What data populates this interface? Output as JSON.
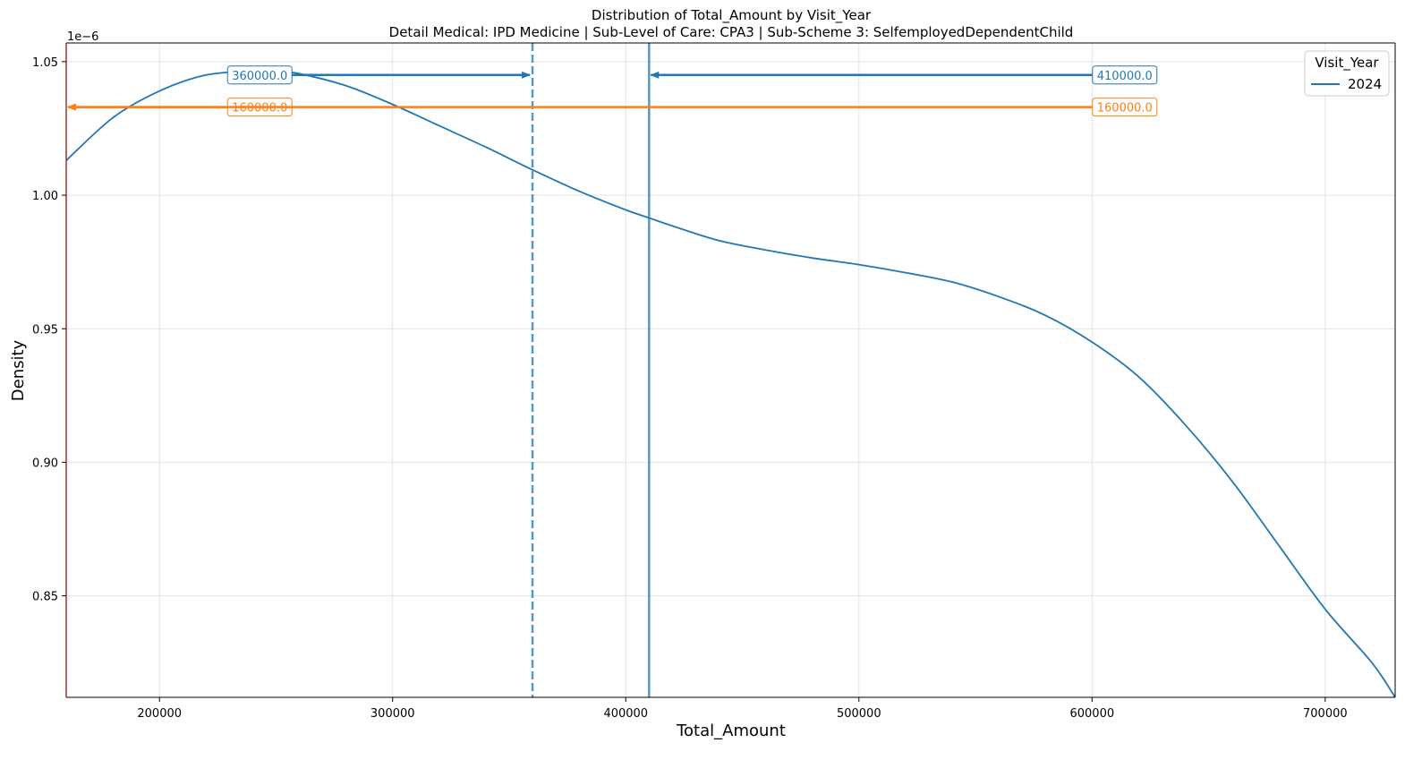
{
  "chart_data": {
    "type": "line",
    "title": "Distribution of Total_Amount by Visit_Year",
    "subtitle": "Detail Medical: IPD Medicine | Sub-Level of Care: CPA3 | Sub-Scheme 3: SelfemployedDependentChild",
    "xlabel": "Total_Amount",
    "ylabel": "Density",
    "y_offset_label": "1e−6",
    "xlim": [
      160000,
      730000
    ],
    "ylim": [
      0.812,
      1.057
    ],
    "x_ticks": [
      200000,
      300000,
      400000,
      500000,
      600000,
      700000
    ],
    "x_tick_labels": [
      "200000",
      "300000",
      "400000",
      "500000",
      "600000",
      "700000"
    ],
    "y_ticks": [
      0.85,
      0.9,
      0.95,
      1.0,
      1.05
    ],
    "y_tick_labels": [
      "0.85",
      "0.90",
      "0.95",
      "1.00",
      "1.05"
    ],
    "grid": true,
    "legend": {
      "title": "Visit_Year",
      "placement": "upper-right"
    },
    "series": [
      {
        "name": "2024",
        "color": "#1f77b4",
        "x": [
          160000,
          180000,
          200000,
          220000,
          240000,
          250000,
          260000,
          280000,
          300000,
          320000,
          340000,
          360000,
          380000,
          400000,
          410000,
          420000,
          440000,
          460000,
          480000,
          500000,
          520000,
          540000,
          560000,
          580000,
          600000,
          620000,
          640000,
          660000,
          680000,
          700000,
          720000,
          730000
        ],
        "y": [
          1.013,
          1.029,
          1.039,
          1.045,
          1.0465,
          1.0465,
          1.0455,
          1.041,
          1.034,
          1.026,
          1.018,
          1.0095,
          1.0015,
          0.9945,
          0.9915,
          0.9885,
          0.983,
          0.9795,
          0.9765,
          0.974,
          0.971,
          0.9675,
          0.962,
          0.955,
          0.945,
          0.932,
          0.914,
          0.893,
          0.869,
          0.845,
          0.825,
          0.812
        ]
      }
    ],
    "vlines": [
      {
        "x": 360000,
        "style": "dashed",
        "color": "#1f77b4"
      },
      {
        "x": 410000,
        "style": "solid",
        "color": "#1f77b4"
      }
    ],
    "annotations": [
      {
        "label": "360000.0",
        "color": "#1f77b4",
        "text_x": 243000,
        "y": 1.045,
        "arrow_to_x": 360000
      },
      {
        "label": "410000.0",
        "color": "#1f77b4",
        "text_x": 614000,
        "y": 1.045,
        "arrow_to_x": 410000
      },
      {
        "label": "160000.0",
        "color": "#ff7f0e",
        "text_x": 243000,
        "y": 1.033,
        "arrow_to_x": 160000
      },
      {
        "label": "160000.0",
        "color": "#ff7f0e",
        "text_x": 614000,
        "y": 1.033,
        "arrow_to_x": 160000
      }
    ]
  }
}
